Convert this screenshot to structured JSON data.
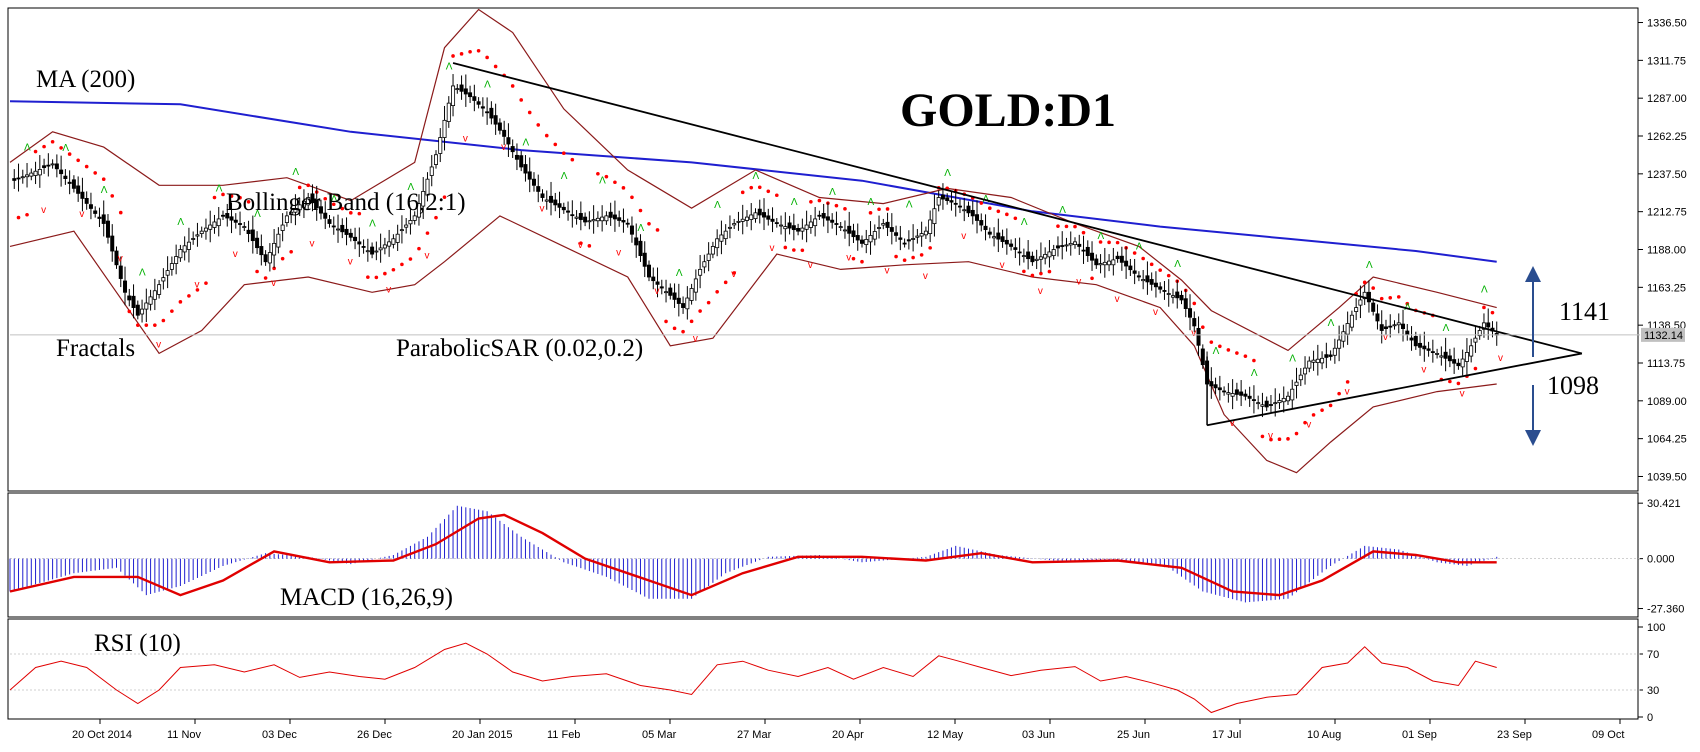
{
  "chart_data": {
    "type": "candlestick",
    "title": "GOLD:D1",
    "timeframe": "D1",
    "indicators": {
      "ma": "MA (200)",
      "bollinger": "Bollinger Band (16,2:1)",
      "fractals": "Fractals",
      "sar": "ParabolicSAR (0.02,0.2)",
      "macd": "MACD (16,26,9)",
      "rsi": "RSI (10)"
    },
    "price_axis": {
      "ticks": [
        "1336.50",
        "1311.75",
        "1287.00",
        "1262.25",
        "1237.50",
        "1212.75",
        "1188.00",
        "1163.25",
        "1138.50",
        "1113.75",
        "1089.00",
        "1064.25",
        "1039.50"
      ],
      "range": [
        1030,
        1346
      ]
    },
    "current_price": "1132.14",
    "levels": {
      "resistance": "1141",
      "support": "1098"
    },
    "macd_axis": {
      "ticks": [
        "30.421",
        "0.000",
        "-27.360"
      ],
      "range": [
        -32,
        36
      ]
    },
    "rsi_axis": {
      "ticks": [
        "100",
        "70",
        "30",
        "0"
      ],
      "range": [
        0,
        100
      ]
    },
    "dates": [
      "20 Oct 2014",
      "11 Nov",
      "03 Dec",
      "26 Dec",
      "20 Jan 2015",
      "11 Feb",
      "05 Mar",
      "27 Mar",
      "20 Apr",
      "12 May",
      "03 Jun",
      "25 Jun",
      "17 Jul",
      "10 Aug",
      "01 Sep",
      "23 Sep",
      "09 Oct"
    ],
    "price_series": [
      {
        "d": 0,
        "p": 1232
      },
      {
        "d": 10,
        "p": 1244
      },
      {
        "d": 15,
        "p": 1228
      },
      {
        "d": 22,
        "p": 1205
      },
      {
        "d": 27,
        "p": 1160
      },
      {
        "d": 30,
        "p": 1145
      },
      {
        "d": 35,
        "p": 1165
      },
      {
        "d": 40,
        "p": 1188
      },
      {
        "d": 45,
        "p": 1200
      },
      {
        "d": 50,
        "p": 1210
      },
      {
        "d": 55,
        "p": 1203
      },
      {
        "d": 60,
        "p": 1180
      },
      {
        "d": 65,
        "p": 1210
      },
      {
        "d": 70,
        "p": 1222
      },
      {
        "d": 75,
        "p": 1205
      },
      {
        "d": 80,
        "p": 1196
      },
      {
        "d": 85,
        "p": 1185
      },
      {
        "d": 90,
        "p": 1195
      },
      {
        "d": 95,
        "p": 1210
      },
      {
        "d": 100,
        "p": 1250
      },
      {
        "d": 104,
        "p": 1295
      },
      {
        "d": 108,
        "p": 1288
      },
      {
        "d": 112,
        "p": 1278
      },
      {
        "d": 116,
        "p": 1262
      },
      {
        "d": 120,
        "p": 1242
      },
      {
        "d": 125,
        "p": 1222
      },
      {
        "d": 130,
        "p": 1214
      },
      {
        "d": 135,
        "p": 1206
      },
      {
        "d": 140,
        "p": 1210
      },
      {
        "d": 145,
        "p": 1205
      },
      {
        "d": 150,
        "p": 1170
      },
      {
        "d": 155,
        "p": 1158
      },
      {
        "d": 158,
        "p": 1150
      },
      {
        "d": 162,
        "p": 1175
      },
      {
        "d": 166,
        "p": 1195
      },
      {
        "d": 170,
        "p": 1205
      },
      {
        "d": 175,
        "p": 1212
      },
      {
        "d": 180,
        "p": 1205
      },
      {
        "d": 185,
        "p": 1200
      },
      {
        "d": 190,
        "p": 1210
      },
      {
        "d": 195,
        "p": 1203
      },
      {
        "d": 200,
        "p": 1192
      },
      {
        "d": 205,
        "p": 1205
      },
      {
        "d": 210,
        "p": 1192
      },
      {
        "d": 215,
        "p": 1200
      },
      {
        "d": 218,
        "p": 1222
      },
      {
        "d": 222,
        "p": 1218
      },
      {
        "d": 226,
        "p": 1210
      },
      {
        "d": 230,
        "p": 1198
      },
      {
        "d": 235,
        "p": 1190
      },
      {
        "d": 240,
        "p": 1180
      },
      {
        "d": 245,
        "p": 1188
      },
      {
        "d": 250,
        "p": 1193
      },
      {
        "d": 255,
        "p": 1178
      },
      {
        "d": 260,
        "p": 1182
      },
      {
        "d": 265,
        "p": 1170
      },
      {
        "d": 270,
        "p": 1162
      },
      {
        "d": 275,
        "p": 1155
      },
      {
        "d": 278,
        "p": 1138
      },
      {
        "d": 281,
        "p": 1100
      },
      {
        "d": 285,
        "p": 1095
      },
      {
        "d": 290,
        "p": 1092
      },
      {
        "d": 295,
        "p": 1085
      },
      {
        "d": 300,
        "p": 1092
      },
      {
        "d": 305,
        "p": 1115
      },
      {
        "d": 310,
        "p": 1118
      },
      {
        "d": 315,
        "p": 1145
      },
      {
        "d": 318,
        "p": 1160
      },
      {
        "d": 322,
        "p": 1135
      },
      {
        "d": 326,
        "p": 1140
      },
      {
        "d": 330,
        "p": 1125
      },
      {
        "d": 335,
        "p": 1120
      },
      {
        "d": 340,
        "p": 1112
      },
      {
        "d": 343,
        "p": 1125
      },
      {
        "d": 346,
        "p": 1140
      },
      {
        "d": 349,
        "p": 1132
      }
    ],
    "ma200": [
      {
        "d": 0,
        "p": 1285
      },
      {
        "d": 40,
        "p": 1283
      },
      {
        "d": 80,
        "p": 1265
      },
      {
        "d": 120,
        "p": 1253
      },
      {
        "d": 160,
        "p": 1245
      },
      {
        "d": 200,
        "p": 1233
      },
      {
        "d": 240,
        "p": 1213
      },
      {
        "d": 270,
        "p": 1203
      },
      {
        "d": 300,
        "p": 1195
      },
      {
        "d": 330,
        "p": 1187
      },
      {
        "d": 349,
        "p": 1180
      }
    ],
    "bollinger_upper": [
      {
        "d": 0,
        "p": 1245
      },
      {
        "d": 10,
        "p": 1265
      },
      {
        "d": 22,
        "p": 1255
      },
      {
        "d": 35,
        "p": 1230
      },
      {
        "d": 50,
        "p": 1230
      },
      {
        "d": 65,
        "p": 1235
      },
      {
        "d": 80,
        "p": 1220
      },
      {
        "d": 95,
        "p": 1245
      },
      {
        "d": 102,
        "p": 1320
      },
      {
        "d": 110,
        "p": 1345
      },
      {
        "d": 118,
        "p": 1330
      },
      {
        "d": 130,
        "p": 1280
      },
      {
        "d": 145,
        "p": 1240
      },
      {
        "d": 160,
        "p": 1215
      },
      {
        "d": 175,
        "p": 1240
      },
      {
        "d": 190,
        "p": 1222
      },
      {
        "d": 205,
        "p": 1218
      },
      {
        "d": 220,
        "p": 1228
      },
      {
        "d": 235,
        "p": 1222
      },
      {
        "d": 250,
        "p": 1205
      },
      {
        "d": 265,
        "p": 1190
      },
      {
        "d": 275,
        "p": 1168
      },
      {
        "d": 282,
        "p": 1148
      },
      {
        "d": 300,
        "p": 1122
      },
      {
        "d": 312,
        "p": 1150
      },
      {
        "d": 320,
        "p": 1170
      },
      {
        "d": 335,
        "p": 1160
      },
      {
        "d": 349,
        "p": 1150
      }
    ],
    "bollinger_lower": [
      {
        "d": 0,
        "p": 1190
      },
      {
        "d": 15,
        "p": 1200
      },
      {
        "d": 25,
        "p": 1160
      },
      {
        "d": 35,
        "p": 1120
      },
      {
        "d": 45,
        "p": 1135
      },
      {
        "d": 55,
        "p": 1165
      },
      {
        "d": 70,
        "p": 1170
      },
      {
        "d": 85,
        "p": 1160
      },
      {
        "d": 95,
        "p": 1165
      },
      {
        "d": 102,
        "p": 1180
      },
      {
        "d": 115,
        "p": 1210
      },
      {
        "d": 130,
        "p": 1190
      },
      {
        "d": 145,
        "p": 1170
      },
      {
        "d": 155,
        "p": 1125
      },
      {
        "d": 165,
        "p": 1130
      },
      {
        "d": 180,
        "p": 1185
      },
      {
        "d": 195,
        "p": 1175
      },
      {
        "d": 210,
        "p": 1178
      },
      {
        "d": 225,
        "p": 1180
      },
      {
        "d": 240,
        "p": 1170
      },
      {
        "d": 255,
        "p": 1165
      },
      {
        "d": 270,
        "p": 1150
      },
      {
        "d": 278,
        "p": 1125
      },
      {
        "d": 285,
        "p": 1080
      },
      {
        "d": 295,
        "p": 1050
      },
      {
        "d": 302,
        "p": 1042
      },
      {
        "d": 310,
        "p": 1062
      },
      {
        "d": 320,
        "p": 1085
      },
      {
        "d": 335,
        "p": 1095
      },
      {
        "d": 349,
        "p": 1100
      }
    ],
    "trendlines": [
      {
        "name": "resistance",
        "from": {
          "d": 104,
          "p": 1310
        },
        "to": {
          "d": 369,
          "p": 1120
        }
      },
      {
        "name": "support",
        "from": {
          "d": 281,
          "p": 1073
        },
        "to": {
          "d": 369,
          "p": 1120
        }
      }
    ],
    "macd_hist": [
      {
        "d": 0,
        "v": -18
      },
      {
        "d": 15,
        "v": -8
      },
      {
        "d": 25,
        "v": -5
      },
      {
        "d": 32,
        "v": -20
      },
      {
        "d": 40,
        "v": -15
      },
      {
        "d": 50,
        "v": -4
      },
      {
        "d": 60,
        "v": 3
      },
      {
        "d": 70,
        "v": 1
      },
      {
        "d": 80,
        "v": -3
      },
      {
        "d": 90,
        "v": 2
      },
      {
        "d": 98,
        "v": 12
      },
      {
        "d": 105,
        "v": 29
      },
      {
        "d": 112,
        "v": 26
      },
      {
        "d": 120,
        "v": 12
      },
      {
        "d": 130,
        "v": -2
      },
      {
        "d": 140,
        "v": -10
      },
      {
        "d": 150,
        "v": -22
      },
      {
        "d": 160,
        "v": -22
      },
      {
        "d": 168,
        "v": -8
      },
      {
        "d": 178,
        "v": 1
      },
      {
        "d": 190,
        "v": 2
      },
      {
        "d": 200,
        "v": -2
      },
      {
        "d": 215,
        "v": 1
      },
      {
        "d": 222,
        "v": 7
      },
      {
        "d": 232,
        "v": 2
      },
      {
        "d": 245,
        "v": -1
      },
      {
        "d": 260,
        "v": -1
      },
      {
        "d": 272,
        "v": -5
      },
      {
        "d": 280,
        "v": -18
      },
      {
        "d": 290,
        "v": -24
      },
      {
        "d": 300,
        "v": -22
      },
      {
        "d": 310,
        "v": -4
      },
      {
        "d": 318,
        "v": 7
      },
      {
        "d": 326,
        "v": 5
      },
      {
        "d": 335,
        "v": -2
      },
      {
        "d": 342,
        "v": -4
      },
      {
        "d": 349,
        "v": 1
      }
    ],
    "macd_signal": [
      {
        "d": 0,
        "v": -18
      },
      {
        "d": 15,
        "v": -10
      },
      {
        "d": 30,
        "v": -10
      },
      {
        "d": 40,
        "v": -20
      },
      {
        "d": 50,
        "v": -12
      },
      {
        "d": 62,
        "v": 4
      },
      {
        "d": 75,
        "v": -2
      },
      {
        "d": 90,
        "v": -1
      },
      {
        "d": 100,
        "v": 8
      },
      {
        "d": 110,
        "v": 22
      },
      {
        "d": 116,
        "v": 24
      },
      {
        "d": 125,
        "v": 14
      },
      {
        "d": 135,
        "v": 0
      },
      {
        "d": 150,
        "v": -12
      },
      {
        "d": 160,
        "v": -20
      },
      {
        "d": 172,
        "v": -8
      },
      {
        "d": 185,
        "v": 1
      },
      {
        "d": 200,
        "v": 1
      },
      {
        "d": 215,
        "v": -1
      },
      {
        "d": 228,
        "v": 3
      },
      {
        "d": 240,
        "v": -2
      },
      {
        "d": 260,
        "v": -1
      },
      {
        "d": 275,
        "v": -5
      },
      {
        "d": 287,
        "v": -18
      },
      {
        "d": 298,
        "v": -20
      },
      {
        "d": 308,
        "v": -12
      },
      {
        "d": 320,
        "v": 4
      },
      {
        "d": 330,
        "v": 2
      },
      {
        "d": 340,
        "v": -2
      },
      {
        "d": 349,
        "v": -2
      }
    ],
    "rsi": [
      {
        "d": 0,
        "v": 30
      },
      {
        "d": 6,
        "v": 55
      },
      {
        "d": 12,
        "v": 62
      },
      {
        "d": 18,
        "v": 55
      },
      {
        "d": 25,
        "v": 30
      },
      {
        "d": 30,
        "v": 15
      },
      {
        "d": 35,
        "v": 30
      },
      {
        "d": 40,
        "v": 55
      },
      {
        "d": 48,
        "v": 58
      },
      {
        "d": 55,
        "v": 50
      },
      {
        "d": 62,
        "v": 58
      },
      {
        "d": 68,
        "v": 44
      },
      {
        "d": 75,
        "v": 50
      },
      {
        "d": 82,
        "v": 45
      },
      {
        "d": 88,
        "v": 42
      },
      {
        "d": 95,
        "v": 55
      },
      {
        "d": 102,
        "v": 75
      },
      {
        "d": 107,
        "v": 82
      },
      {
        "d": 112,
        "v": 70
      },
      {
        "d": 118,
        "v": 50
      },
      {
        "d": 125,
        "v": 40
      },
      {
        "d": 132,
        "v": 45
      },
      {
        "d": 140,
        "v": 48
      },
      {
        "d": 148,
        "v": 35
      },
      {
        "d": 155,
        "v": 30
      },
      {
        "d": 160,
        "v": 25
      },
      {
        "d": 166,
        "v": 58
      },
      {
        "d": 172,
        "v": 62
      },
      {
        "d": 178,
        "v": 52
      },
      {
        "d": 185,
        "v": 45
      },
      {
        "d": 192,
        "v": 55
      },
      {
        "d": 198,
        "v": 42
      },
      {
        "d": 205,
        "v": 55
      },
      {
        "d": 212,
        "v": 45
      },
      {
        "d": 218,
        "v": 68
      },
      {
        "d": 222,
        "v": 63
      },
      {
        "d": 228,
        "v": 55
      },
      {
        "d": 235,
        "v": 46
      },
      {
        "d": 242,
        "v": 52
      },
      {
        "d": 250,
        "v": 56
      },
      {
        "d": 256,
        "v": 40
      },
      {
        "d": 262,
        "v": 45
      },
      {
        "d": 268,
        "v": 38
      },
      {
        "d": 274,
        "v": 30
      },
      {
        "d": 278,
        "v": 20
      },
      {
        "d": 282,
        "v": 5
      },
      {
        "d": 288,
        "v": 15
      },
      {
        "d": 295,
        "v": 22
      },
      {
        "d": 302,
        "v": 25
      },
      {
        "d": 308,
        "v": 55
      },
      {
        "d": 314,
        "v": 60
      },
      {
        "d": 318,
        "v": 78
      },
      {
        "d": 322,
        "v": 60
      },
      {
        "d": 328,
        "v": 55
      },
      {
        "d": 334,
        "v": 40
      },
      {
        "d": 340,
        "v": 35
      },
      {
        "d": 344,
        "v": 62
      },
      {
        "d": 349,
        "v": 55
      }
    ]
  }
}
